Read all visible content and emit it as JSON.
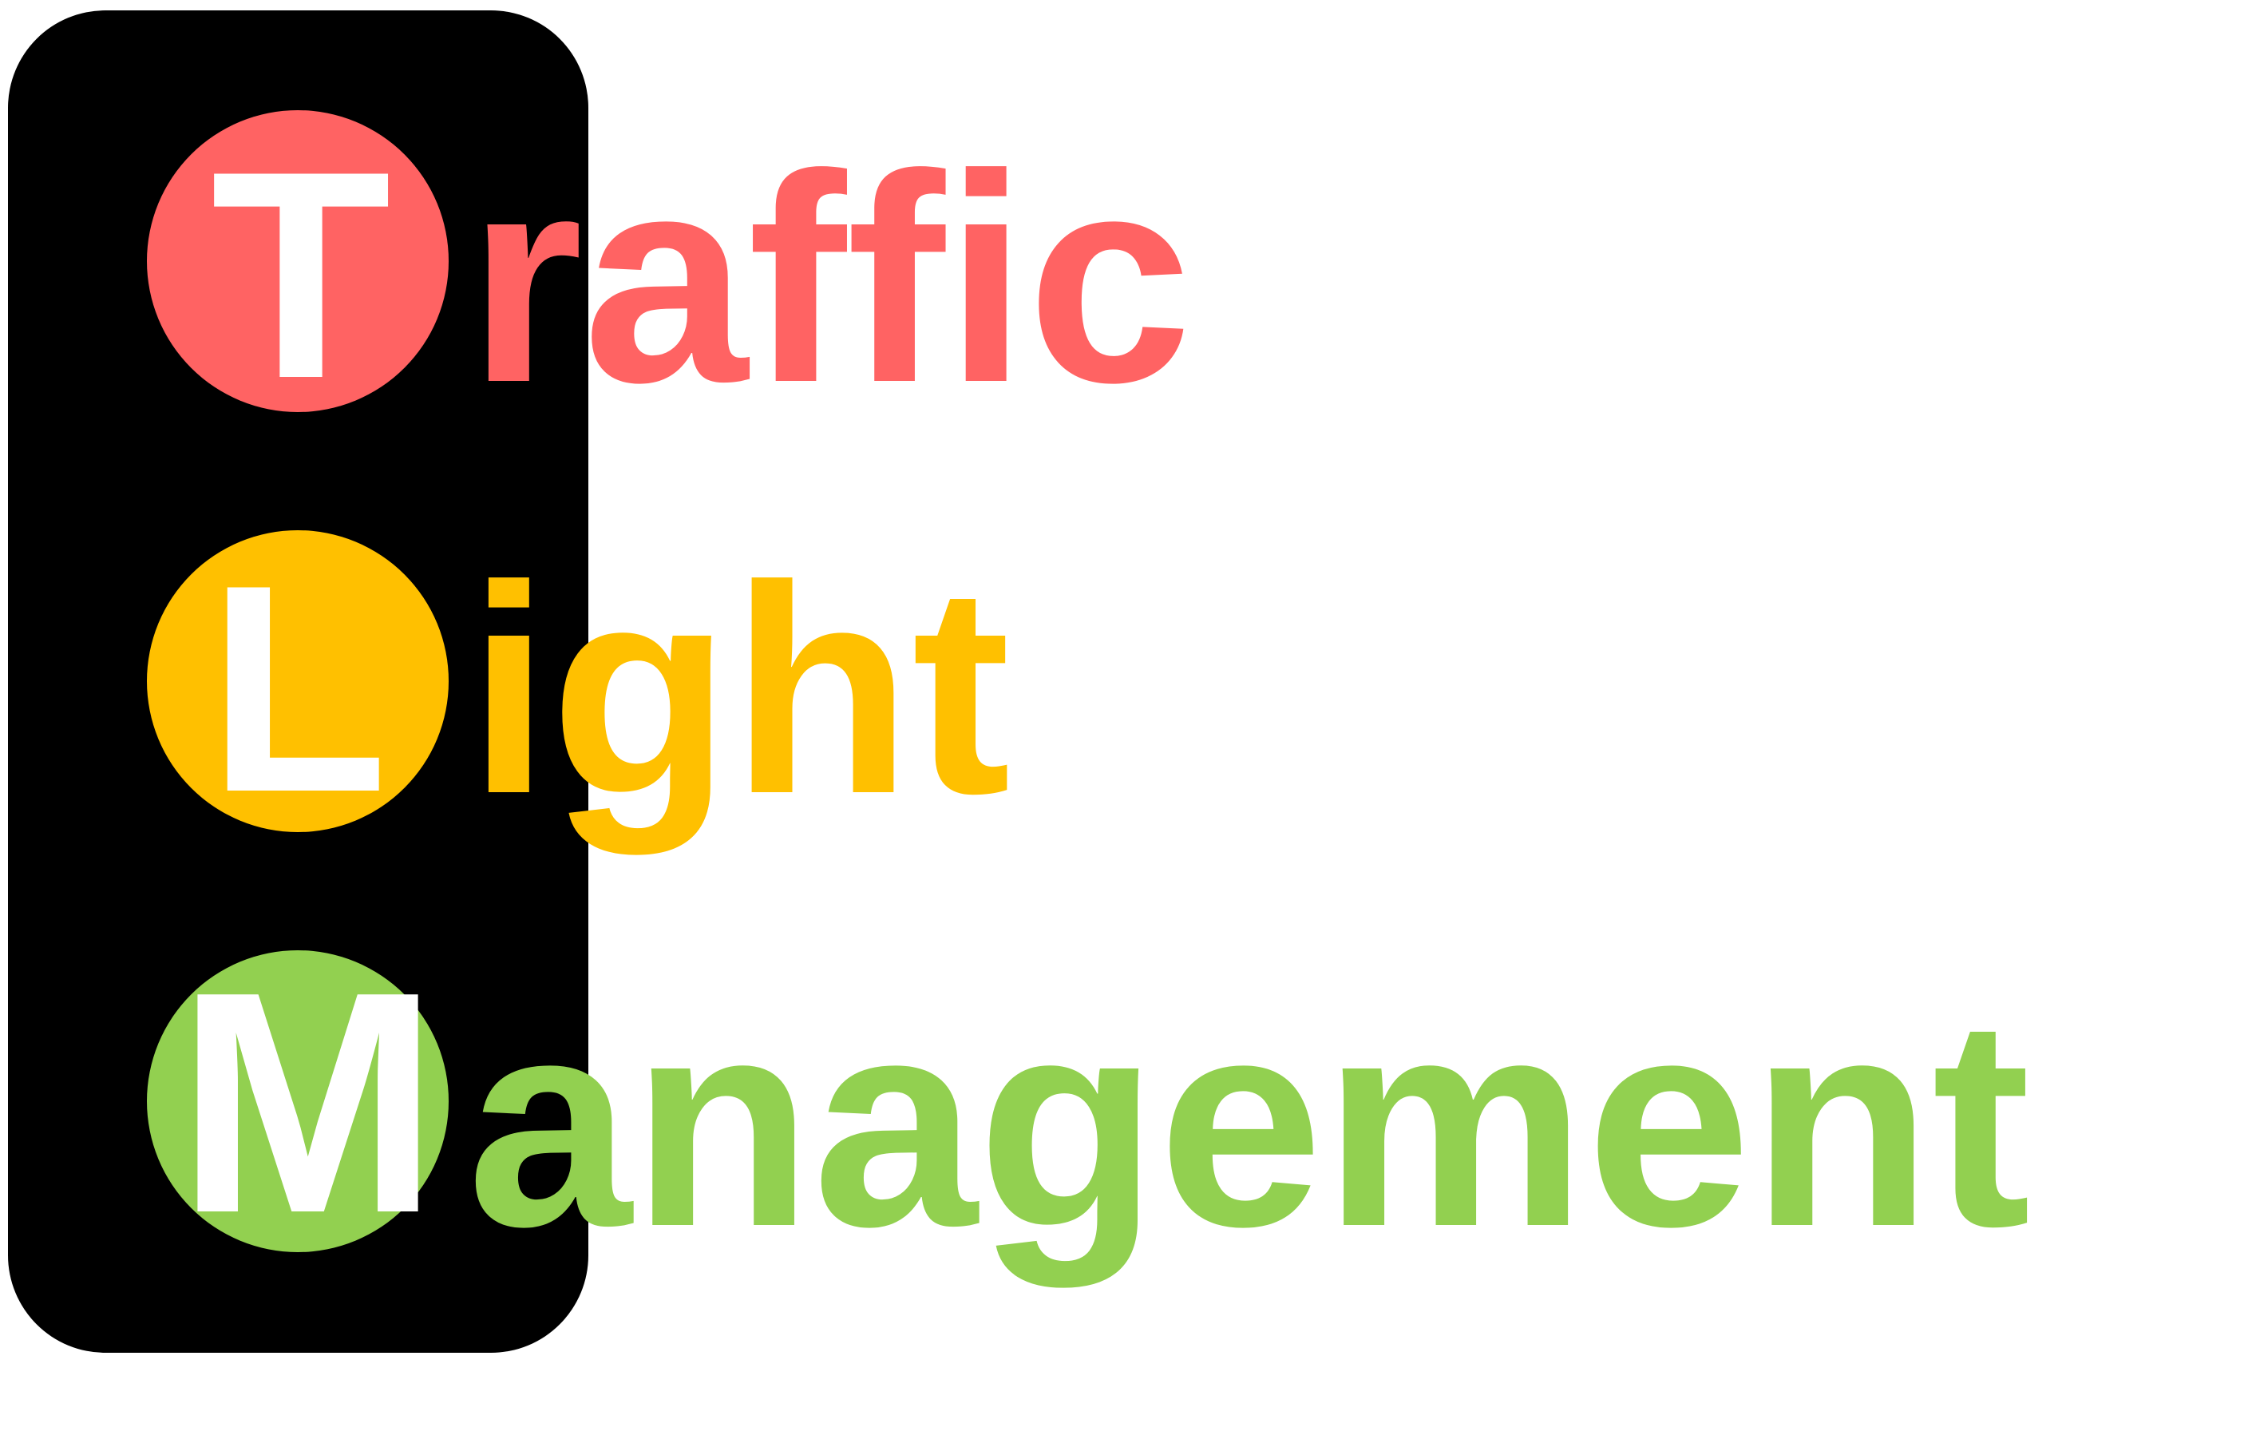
{
  "logo": {
    "lines": [
      {
        "initial": "T",
        "rest": "raffic",
        "color": "#FF6363"
      },
      {
        "initial": "L",
        "rest": "ight",
        "color": "#FFC000"
      },
      {
        "initial": "M",
        "rest": "anagement",
        "color": "#92D050"
      }
    ],
    "housing_color": "#000000",
    "letter_color": "#FFFFFF"
  }
}
